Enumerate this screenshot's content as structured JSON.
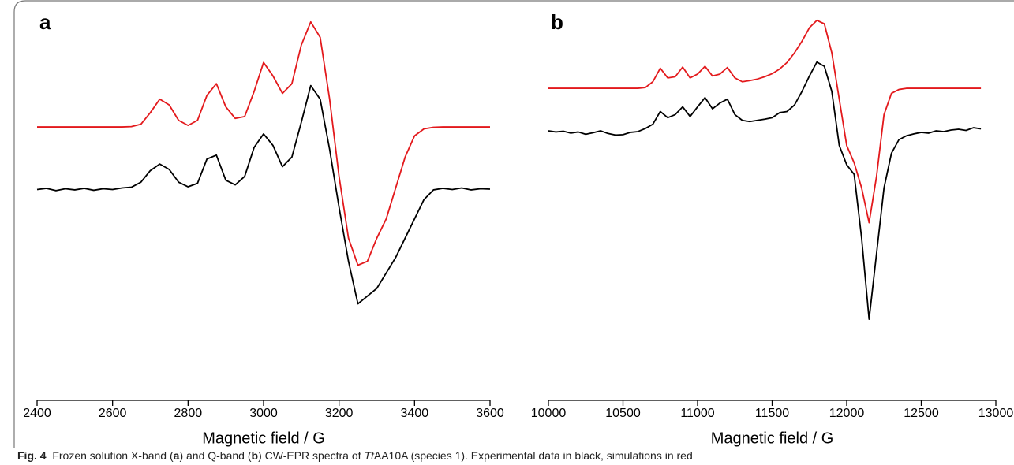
{
  "chart_data": [
    {
      "type": "line",
      "panel_label": "a",
      "xlabel": "Magnetic field / G",
      "x": [
        2400,
        2425,
        2450,
        2475,
        2500,
        2525,
        2550,
        2575,
        2600,
        2625,
        2650,
        2675,
        2700,
        2725,
        2750,
        2775,
        2800,
        2825,
        2850,
        2875,
        2900,
        2925,
        2950,
        2975,
        3000,
        3025,
        3050,
        3075,
        3100,
        3125,
        3150,
        3175,
        3200,
        3225,
        3250,
        3275,
        3300,
        3325,
        3350,
        3375,
        3400,
        3425,
        3450,
        3475,
        3500,
        3525,
        3550,
        3575,
        3600
      ],
      "series": [
        {
          "color": "#e3191c",
          "values": [
            70.8,
            70.8,
            70.8,
            70.8,
            70.8,
            70.8,
            70.8,
            70.8,
            70.8,
            70.8,
            70.9,
            71.5,
            74.5,
            78,
            76.5,
            72.5,
            71.2,
            72.5,
            79,
            82,
            76,
            73,
            73.5,
            80,
            87.5,
            84,
            79.5,
            82,
            92,
            98,
            94,
            78,
            58,
            42,
            35,
            36,
            42,
            47,
            55,
            63,
            68.5,
            70.3,
            70.7,
            70.8,
            70.8,
            70.8,
            70.8,
            70.8,
            70.8
          ]
        },
        {
          "color": "#000000",
          "values": [
            54.6,
            54.9,
            54.3,
            54.8,
            54.5,
            54.9,
            54.4,
            54.8,
            54.6,
            55.0,
            55.2,
            56.5,
            59.5,
            61.2,
            59.8,
            56.5,
            55.3,
            56.2,
            62.5,
            63.5,
            57,
            55.8,
            58,
            65.5,
            69,
            66,
            60.5,
            63,
            72,
            81.5,
            78,
            65,
            50,
            36,
            25,
            27,
            29,
            33,
            37,
            42,
            47,
            52,
            54.5,
            54.9,
            54.6,
            55.0,
            54.5,
            54.8,
            54.7
          ]
        }
      ],
      "xlim": [
        2400,
        3600
      ],
      "xticks": [
        2400,
        2600,
        2800,
        3000,
        3200,
        3400,
        3600
      ],
      "ylim": [
        0,
        100
      ]
    },
    {
      "type": "line",
      "panel_label": "b",
      "xlabel": "Magnetic field / G",
      "x": [
        10000,
        10050,
        10100,
        10150,
        10200,
        10250,
        10300,
        10350,
        10400,
        10450,
        10500,
        10550,
        10600,
        10650,
        10700,
        10750,
        10800,
        10850,
        10900,
        10950,
        11000,
        11050,
        11100,
        11150,
        11200,
        11250,
        11300,
        11350,
        11400,
        11450,
        11500,
        11550,
        11600,
        11650,
        11700,
        11750,
        11800,
        11850,
        11900,
        11950,
        12000,
        12050,
        12100,
        12150,
        12200,
        12250,
        12300,
        12350,
        12400,
        12450,
        12500,
        12550,
        12600,
        12650,
        12700,
        12750,
        12800,
        12850,
        12900
      ],
      "series": [
        {
          "color": "#e3191c",
          "values": [
            80.8,
            80.8,
            80.8,
            80.8,
            80.8,
            80.8,
            80.8,
            80.8,
            80.8,
            80.8,
            80.8,
            80.8,
            80.8,
            81.0,
            82.5,
            86.0,
            83.5,
            83.8,
            86.3,
            83.5,
            84.5,
            86.5,
            84,
            84.5,
            86.2,
            83.5,
            82.5,
            82.8,
            83.2,
            83.8,
            84.6,
            85.8,
            87.5,
            90,
            93,
            96.5,
            98.4,
            97.5,
            90,
            78,
            66,
            61.5,
            55,
            46,
            58,
            74,
            79.5,
            80.5,
            80.8,
            80.8,
            80.8,
            80.8,
            80.8,
            80.8,
            80.8,
            80.8,
            80.8,
            80.8,
            80.8
          ]
        },
        {
          "color": "#000000",
          "values": [
            69.8,
            69.5,
            69.7,
            69.2,
            69.5,
            68.9,
            69.3,
            69.8,
            69.1,
            68.7,
            68.8,
            69.4,
            69.6,
            70.4,
            71.5,
            74.8,
            73.2,
            74,
            76,
            73.5,
            76,
            78.4,
            75.5,
            77,
            78,
            74,
            72.5,
            72.2,
            72.5,
            72.8,
            73.2,
            74.5,
            74.8,
            76.5,
            80,
            84,
            87.6,
            86.5,
            80,
            66,
            61,
            58.5,
            42,
            21,
            38,
            55,
            64,
            67.5,
            68.5,
            69,
            69.4,
            69.2,
            69.8,
            69.6,
            70,
            70.2,
            69.9,
            70.6,
            70.3
          ]
        }
      ],
      "xlim": [
        10000,
        13000
      ],
      "xticks": [
        10000,
        10500,
        11000,
        11500,
        12000,
        12500,
        13000
      ],
      "ylim": [
        0,
        100
      ]
    }
  ],
  "caption": {
    "label": "Fig. 4",
    "parts": [
      "Frozen solution X-band (",
      "a",
      ") and Q-band (",
      "b",
      ") CW-EPR spectra of ",
      "Tt",
      "AA10A (species 1). Experimental data in black, simulations in red"
    ]
  }
}
